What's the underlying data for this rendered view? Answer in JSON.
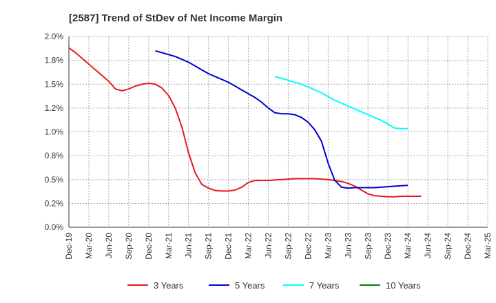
{
  "chart_data": {
    "type": "line",
    "title": "[2587]  Trend of StDev of Net Income Margin",
    "xlabel": "",
    "ylabel": "",
    "x_ticks": [
      "Dec-19",
      "Mar-20",
      "Jun-20",
      "Sep-20",
      "Dec-20",
      "Mar-21",
      "Jun-21",
      "Sep-21",
      "Dec-21",
      "Mar-22",
      "Jun-22",
      "Sep-22",
      "Dec-22",
      "Mar-23",
      "Jun-23",
      "Sep-23",
      "Dec-23",
      "Mar-24",
      "Jun-24",
      "Sep-24",
      "Dec-24",
      "Mar-25"
    ],
    "y_ticks": [
      "0.0%",
      "0.2%",
      "0.5%",
      "0.8%",
      "1.0%",
      "1.2%",
      "1.5%",
      "1.8%",
      "2.0%"
    ],
    "ylim": [
      0,
      2.0
    ],
    "grid": true,
    "legend_position": "bottom",
    "series": [
      {
        "name": "3 Years",
        "color": "#e41a1c",
        "points": [
          [
            0,
            1.88
          ],
          [
            1,
            1.83
          ],
          [
            2,
            1.77
          ],
          [
            3,
            1.71
          ],
          [
            4,
            1.65
          ],
          [
            5,
            1.59
          ],
          [
            6,
            1.53
          ],
          [
            7,
            1.45
          ],
          [
            8,
            1.43
          ],
          [
            9,
            1.45
          ],
          [
            10,
            1.48
          ],
          [
            11,
            1.5
          ],
          [
            12,
            1.51
          ],
          [
            13,
            1.5
          ],
          [
            14,
            1.46
          ],
          [
            15,
            1.38
          ],
          [
            16,
            1.25
          ],
          [
            17,
            1.05
          ],
          [
            18,
            0.78
          ],
          [
            19,
            0.57
          ],
          [
            20,
            0.45
          ],
          [
            21,
            0.41
          ],
          [
            22,
            0.385
          ],
          [
            23,
            0.38
          ],
          [
            24,
            0.38
          ],
          [
            25,
            0.39
          ],
          [
            26,
            0.42
          ],
          [
            27,
            0.47
          ],
          [
            28,
            0.49
          ],
          [
            29,
            0.49
          ],
          [
            30,
            0.49
          ],
          [
            31,
            0.495
          ],
          [
            32,
            0.5
          ],
          [
            33,
            0.505
          ],
          [
            34,
            0.51
          ],
          [
            35,
            0.51
          ],
          [
            36,
            0.51
          ],
          [
            37,
            0.51
          ],
          [
            38,
            0.505
          ],
          [
            39,
            0.5
          ],
          [
            40,
            0.49
          ],
          [
            41,
            0.48
          ],
          [
            42,
            0.46
          ],
          [
            43,
            0.43
          ],
          [
            44,
            0.39
          ],
          [
            45,
            0.35
          ],
          [
            46,
            0.33
          ],
          [
            47,
            0.325
          ],
          [
            48,
            0.32
          ],
          [
            49,
            0.32
          ],
          [
            50,
            0.325
          ],
          [
            51,
            0.325
          ],
          [
            52,
            0.325
          ],
          [
            53,
            0.325
          ]
        ]
      },
      {
        "name": "5 Years",
        "color": "#0000cc",
        "points": [
          [
            13,
            1.85
          ],
          [
            14,
            1.83
          ],
          [
            15,
            1.81
          ],
          [
            16,
            1.79
          ],
          [
            17,
            1.76
          ],
          [
            18,
            1.73
          ],
          [
            19,
            1.69
          ],
          [
            20,
            1.65
          ],
          [
            21,
            1.61
          ],
          [
            22,
            1.58
          ],
          [
            23,
            1.55
          ],
          [
            24,
            1.52
          ],
          [
            25,
            1.48
          ],
          [
            26,
            1.44
          ],
          [
            27,
            1.4
          ],
          [
            28,
            1.36
          ],
          [
            29,
            1.31
          ],
          [
            30,
            1.25
          ],
          [
            31,
            1.2
          ],
          [
            32,
            1.19
          ],
          [
            33,
            1.19
          ],
          [
            34,
            1.18
          ],
          [
            35,
            1.15
          ],
          [
            36,
            1.1
          ],
          [
            37,
            1.02
          ],
          [
            38,
            0.9
          ],
          [
            39,
            0.67
          ],
          [
            40,
            0.49
          ],
          [
            41,
            0.42
          ],
          [
            42,
            0.41
          ],
          [
            43,
            0.415
          ],
          [
            44,
            0.415
          ],
          [
            45,
            0.415
          ],
          [
            46,
            0.415
          ],
          [
            47,
            0.42
          ],
          [
            48,
            0.425
          ],
          [
            49,
            0.43
          ],
          [
            50,
            0.435
          ],
          [
            51,
            0.44
          ]
        ]
      },
      {
        "name": "7 Years",
        "color": "#00ffff",
        "points": [
          [
            31,
            1.58
          ],
          [
            32,
            1.56
          ],
          [
            33,
            1.54
          ],
          [
            34,
            1.52
          ],
          [
            35,
            1.5
          ],
          [
            36,
            1.47
          ],
          [
            37,
            1.44
          ],
          [
            38,
            1.41
          ],
          [
            39,
            1.37
          ],
          [
            40,
            1.33
          ],
          [
            41,
            1.3
          ],
          [
            42,
            1.27
          ],
          [
            43,
            1.24
          ],
          [
            44,
            1.21
          ],
          [
            45,
            1.18
          ],
          [
            46,
            1.15
          ],
          [
            47,
            1.12
          ],
          [
            48,
            1.08
          ],
          [
            49,
            1.04
          ],
          [
            50,
            1.035
          ],
          [
            51,
            1.035
          ]
        ]
      },
      {
        "name": "10 Years",
        "color": "#008000",
        "points": []
      }
    ]
  }
}
